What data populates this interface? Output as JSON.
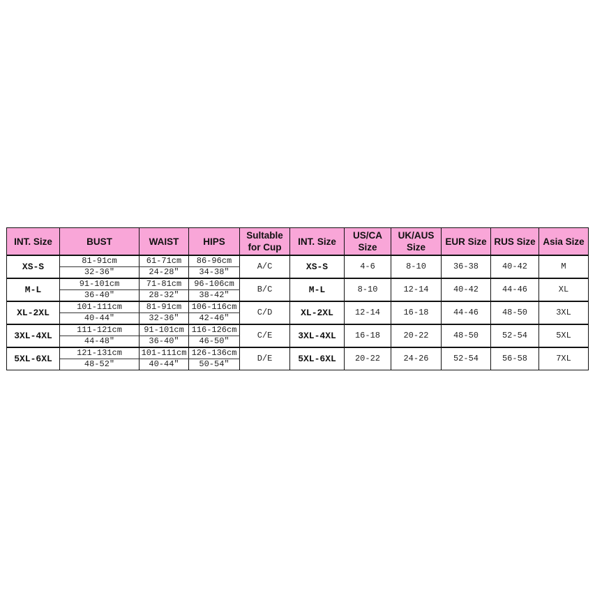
{
  "headers": [
    "INT. Size",
    "BUST",
    "WAIST",
    "HIPS",
    "Sultable for Cup",
    "INT. Size",
    "US/CA Size",
    "UK/AUS Size",
    "EUR Size",
    "RUS Size",
    "Asia Size"
  ],
  "header_color": "#f9a6d8",
  "rows": [
    {
      "int": "XS-S",
      "bust": [
        "81-91cm",
        "32-36″"
      ],
      "waist": [
        "61-71cm",
        "24-28″"
      ],
      "hips": [
        "86-96cm",
        "34-38″"
      ],
      "cup": "A/C",
      "int2": "XS-S",
      "us": "4-6",
      "uk": "8-10",
      "eur": "36-38",
      "rus": "40-42",
      "asia": "M"
    },
    {
      "int": "M-L",
      "bust": [
        "91-101cm",
        "36-40″"
      ],
      "waist": [
        "71-81cm",
        "28-32″"
      ],
      "hips": [
        "96-106cm",
        "38-42″"
      ],
      "cup": "B/C",
      "int2": "M-L",
      "us": "8-10",
      "uk": "12-14",
      "eur": "40-42",
      "rus": "44-46",
      "asia": "XL"
    },
    {
      "int": "XL-2XL",
      "bust": [
        "101-111cm",
        "40-44″"
      ],
      "waist": [
        "81-91cm",
        "32-36″"
      ],
      "hips": [
        "106-116cm",
        "42-46″"
      ],
      "cup": "C/D",
      "int2": "XL-2XL",
      "us": "12-14",
      "uk": "16-18",
      "eur": "44-46",
      "rus": "48-50",
      "asia": "3XL"
    },
    {
      "int": "3XL-4XL",
      "bust": [
        "111-121cm",
        "44-48″"
      ],
      "waist": [
        "91-101cm",
        "36-40″"
      ],
      "hips": [
        "116-126cm",
        "46-50″"
      ],
      "cup": "C/E",
      "int2": "3XL-4XL",
      "us": "16-18",
      "uk": "20-22",
      "eur": "48-50",
      "rus": "52-54",
      "asia": "5XL"
    },
    {
      "int": "5XL-6XL",
      "bust": [
        "121-131cm",
        "48-52″"
      ],
      "waist": [
        "101-111cm",
        "40-44″"
      ],
      "hips": [
        "126-136cm",
        "50-54″"
      ],
      "cup": "D/E",
      "int2": "5XL-6XL",
      "us": "20-22",
      "uk": "24-26",
      "eur": "52-54",
      "rus": "56-58",
      "asia": "7XL"
    }
  ]
}
